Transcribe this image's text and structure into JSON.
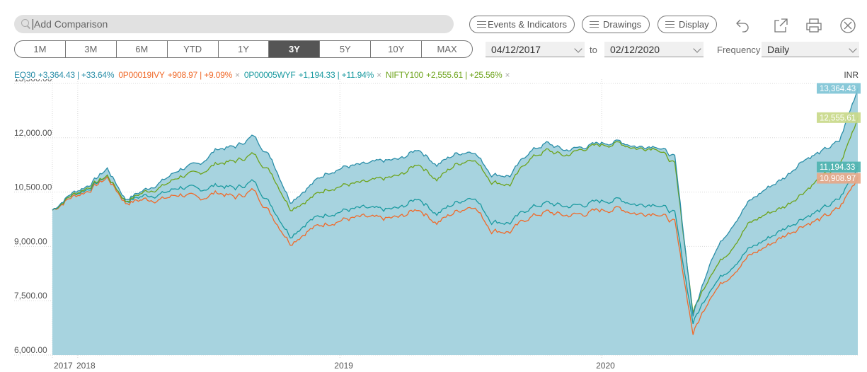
{
  "search": {
    "placeholder": "Add Comparison"
  },
  "toolbar": {
    "events_label": "Events & Indicators",
    "drawings_label": "Drawings",
    "display_label": "Display",
    "icons": [
      "undo-icon",
      "popout-icon",
      "print-icon",
      "close-icon"
    ]
  },
  "periods": [
    {
      "label": "1M",
      "active": false
    },
    {
      "label": "3M",
      "active": false
    },
    {
      "label": "6M",
      "active": false
    },
    {
      "label": "YTD",
      "active": false
    },
    {
      "label": "1Y",
      "active": false
    },
    {
      "label": "3Y",
      "active": true
    },
    {
      "label": "5Y",
      "active": false
    },
    {
      "label": "10Y",
      "active": false
    },
    {
      "label": "MAX",
      "active": false
    }
  ],
  "date_range": {
    "from": "04/12/2017",
    "to_label": "to",
    "to": "02/12/2020"
  },
  "frequency": {
    "label": "Frequency",
    "value": "Daily"
  },
  "currency": "INR",
  "legend": [
    {
      "symbol": "EQ30",
      "change": "+3,364.43 | +33.64%",
      "color": "#2a8ea8",
      "removable": false
    },
    {
      "symbol": "0P00019IVY",
      "change": "+908.97 | +9.09%",
      "color": "#f06a2a",
      "removable": true
    },
    {
      "symbol": "0P00005WYF",
      "change": "+1,194.33 | +11.94%",
      "color": "#1b9aa0",
      "removable": true
    },
    {
      "symbol": "NIFTY100",
      "change": "+2,555.61 | +25.56%",
      "color": "#6da31b",
      "removable": true
    }
  ],
  "chart_data": {
    "type": "line",
    "y_ticks": [
      "13,500.00",
      "12,000.00",
      "10,500.00",
      "9,000.00",
      "7,500.00",
      "6,000.00"
    ],
    "ylim": [
      6000,
      13500
    ],
    "x_labels": [
      "2017",
      "2018",
      "2019",
      "2020"
    ],
    "end_labels": [
      {
        "text": "13,364.43",
        "color": "#7fc4d6"
      },
      {
        "text": "12,555.61",
        "color": "#c9d98a"
      },
      {
        "text": "11,194.33",
        "color": "#4fb3b0"
      },
      {
        "text": "10,908.97",
        "color": "#e7a889"
      }
    ],
    "series": [
      {
        "name": "EQ30",
        "color": "#2a8ea8",
        "fill": "#a7d3df",
        "values": [
          10000,
          10450,
          10700,
          11150,
          10300,
          10550,
          10800,
          11150,
          11250,
          11700,
          11750,
          12050,
          11400,
          10250,
          10650,
          11050,
          11200,
          11250,
          11350,
          11400,
          11700,
          11250,
          11550,
          11650,
          11000,
          10950,
          11600,
          11850,
          11650,
          11750,
          11850,
          11900,
          11750,
          11800,
          11450,
          7100,
          8700,
          9500,
          10200,
          10600,
          10900,
          11400,
          11600,
          11900,
          13364
        ]
      },
      {
        "name": "NIFTY100",
        "color": "#6da31b",
        "values": [
          10000,
          10400,
          10650,
          10950,
          10250,
          10500,
          10650,
          10950,
          11000,
          11300,
          11350,
          11550,
          11000,
          10050,
          10300,
          10600,
          10700,
          10750,
          10850,
          10950,
          11300,
          10850,
          11250,
          11450,
          10800,
          10700,
          11400,
          11650,
          11500,
          11700,
          11800,
          11850,
          11700,
          11750,
          11250,
          7200,
          8300,
          8900,
          9600,
          9900,
          10100,
          10500,
          10900,
          11200,
          12556
        ]
      },
      {
        "name": "0P00005WYF",
        "color": "#1b9aa0",
        "values": [
          10000,
          10400,
          10600,
          10950,
          10250,
          10400,
          10450,
          10650,
          10550,
          10700,
          10600,
          10800,
          10100,
          9300,
          9700,
          9900,
          10000,
          10050,
          10000,
          10050,
          10350,
          9900,
          10200,
          10400,
          9700,
          9650,
          10050,
          10200,
          10100,
          10150,
          10250,
          10300,
          10150,
          10200,
          9900,
          6900,
          7900,
          8400,
          8900,
          9200,
          9500,
          9800,
          10000,
          10300,
          11194
        ]
      },
      {
        "name": "0P00019IVY",
        "color": "#f06a2a",
        "values": [
          10000,
          10350,
          10550,
          10900,
          10200,
          10300,
          10300,
          10450,
          10300,
          10500,
          10350,
          10550,
          9850,
          9100,
          9450,
          9650,
          9750,
          9800,
          9750,
          9800,
          10050,
          9650,
          9950,
          10150,
          9450,
          9400,
          9800,
          9950,
          9850,
          9900,
          10000,
          10050,
          9900,
          9950,
          9650,
          6600,
          7700,
          8200,
          8700,
          9000,
          9300,
          9600,
          9750,
          10050,
          10909
        ]
      }
    ]
  }
}
